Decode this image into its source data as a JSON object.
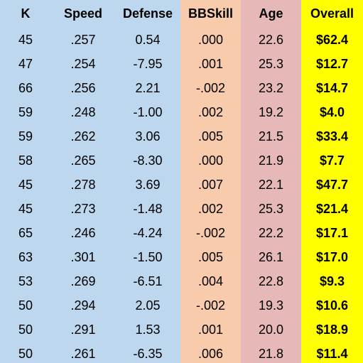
{
  "table": {
    "headers": [
      "K",
      "Speed",
      "Defense",
      "BBSkill",
      "Age",
      "Overall"
    ],
    "rows": [
      [
        "45",
        ".257",
        "0.54",
        ".000",
        "22.6",
        "$62.4"
      ],
      [
        "47",
        ".254",
        "-7.95",
        ".001",
        "25.3",
        "$12.7"
      ],
      [
        "66",
        ".256",
        "2.21",
        "-.002",
        "23.2",
        "$14.7"
      ],
      [
        "59",
        ".248",
        "-1.00",
        ".002",
        "19.2",
        "$4.0"
      ],
      [
        "59",
        ".262",
        "3.06",
        ".005",
        "21.5",
        "$33.4"
      ],
      [
        "58",
        ".265",
        "-8.30",
        ".000",
        "21.9",
        "$7.7"
      ],
      [
        "45",
        ".278",
        "3.69",
        ".007",
        "22.1",
        "$47.7"
      ],
      [
        "45",
        ".273",
        "-1.48",
        ".002",
        "25.3",
        "$21.4"
      ],
      [
        "65",
        ".246",
        "-4.24",
        "-.002",
        "22.2",
        "$17.1"
      ],
      [
        "63",
        ".301",
        "-1.50",
        ".005",
        "26.1",
        "$17.0"
      ],
      [
        "53",
        ".269",
        "-6.51",
        ".004",
        "22.8",
        "$9.3"
      ],
      [
        "50",
        ".294",
        "2.05",
        "-.002",
        "19.3",
        "$10.6"
      ],
      [
        "50",
        ".291",
        "1.53",
        ".001",
        "20.0",
        "$18.9"
      ],
      [
        "50",
        ".261",
        "-6.35",
        ".006",
        "21.8",
        "$11.4"
      ]
    ]
  },
  "colors": {
    "blue_columns": "#bdd7ee",
    "bbskill_column": "#f8cbad",
    "age_column": "#e6b8b7",
    "overall_column": "#ffff00"
  }
}
